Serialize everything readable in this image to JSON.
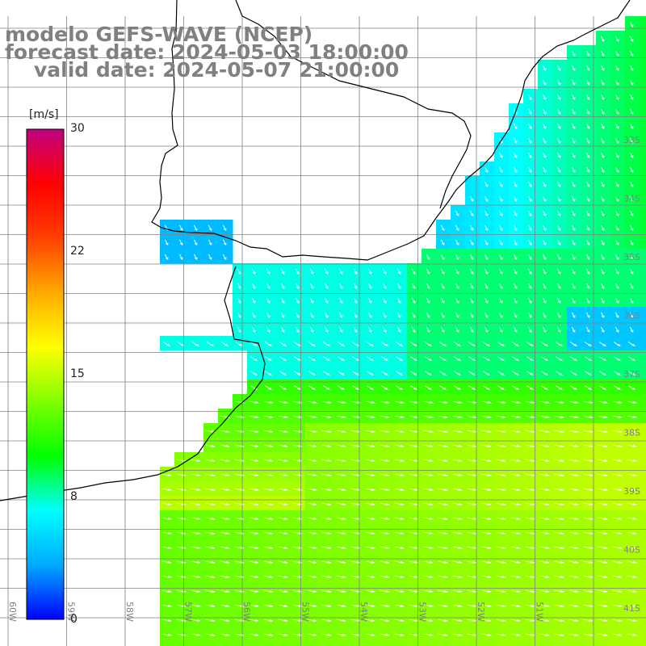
{
  "title": {
    "line1": "modelo GEFS-WAVE (NCEP)",
    "line2": "forecast date: 2024-05-03 18:00:00",
    "line3": "valid date: 2024-05-07 21:00:00"
  },
  "colorbar": {
    "unit": "[m/s]",
    "ticks": [
      "30",
      "22",
      "15",
      "8",
      "0"
    ],
    "min": 0,
    "max": 30,
    "stops": [
      "#0000ff",
      "#00aaff",
      "#00ffff",
      "#00ff00",
      "#80ff00",
      "#ffff00",
      "#ffaa00",
      "#ff4000",
      "#ff0000",
      "#c00080"
    ]
  },
  "axes": {
    "lon_labels": [
      "60W",
      "59W",
      "58W",
      "57W",
      "56W",
      "55W",
      "54W",
      "53W",
      "52W",
      "51W"
    ],
    "lat_labels": [
      "33S",
      "34S",
      "35S",
      "36S",
      "37S",
      "38S",
      "39S",
      "40S",
      "41S"
    ]
  },
  "field_colors": {
    "land": "#ffffff",
    "grid": "#808080",
    "coast": "#000000",
    "arrows": "#ffffff"
  }
}
